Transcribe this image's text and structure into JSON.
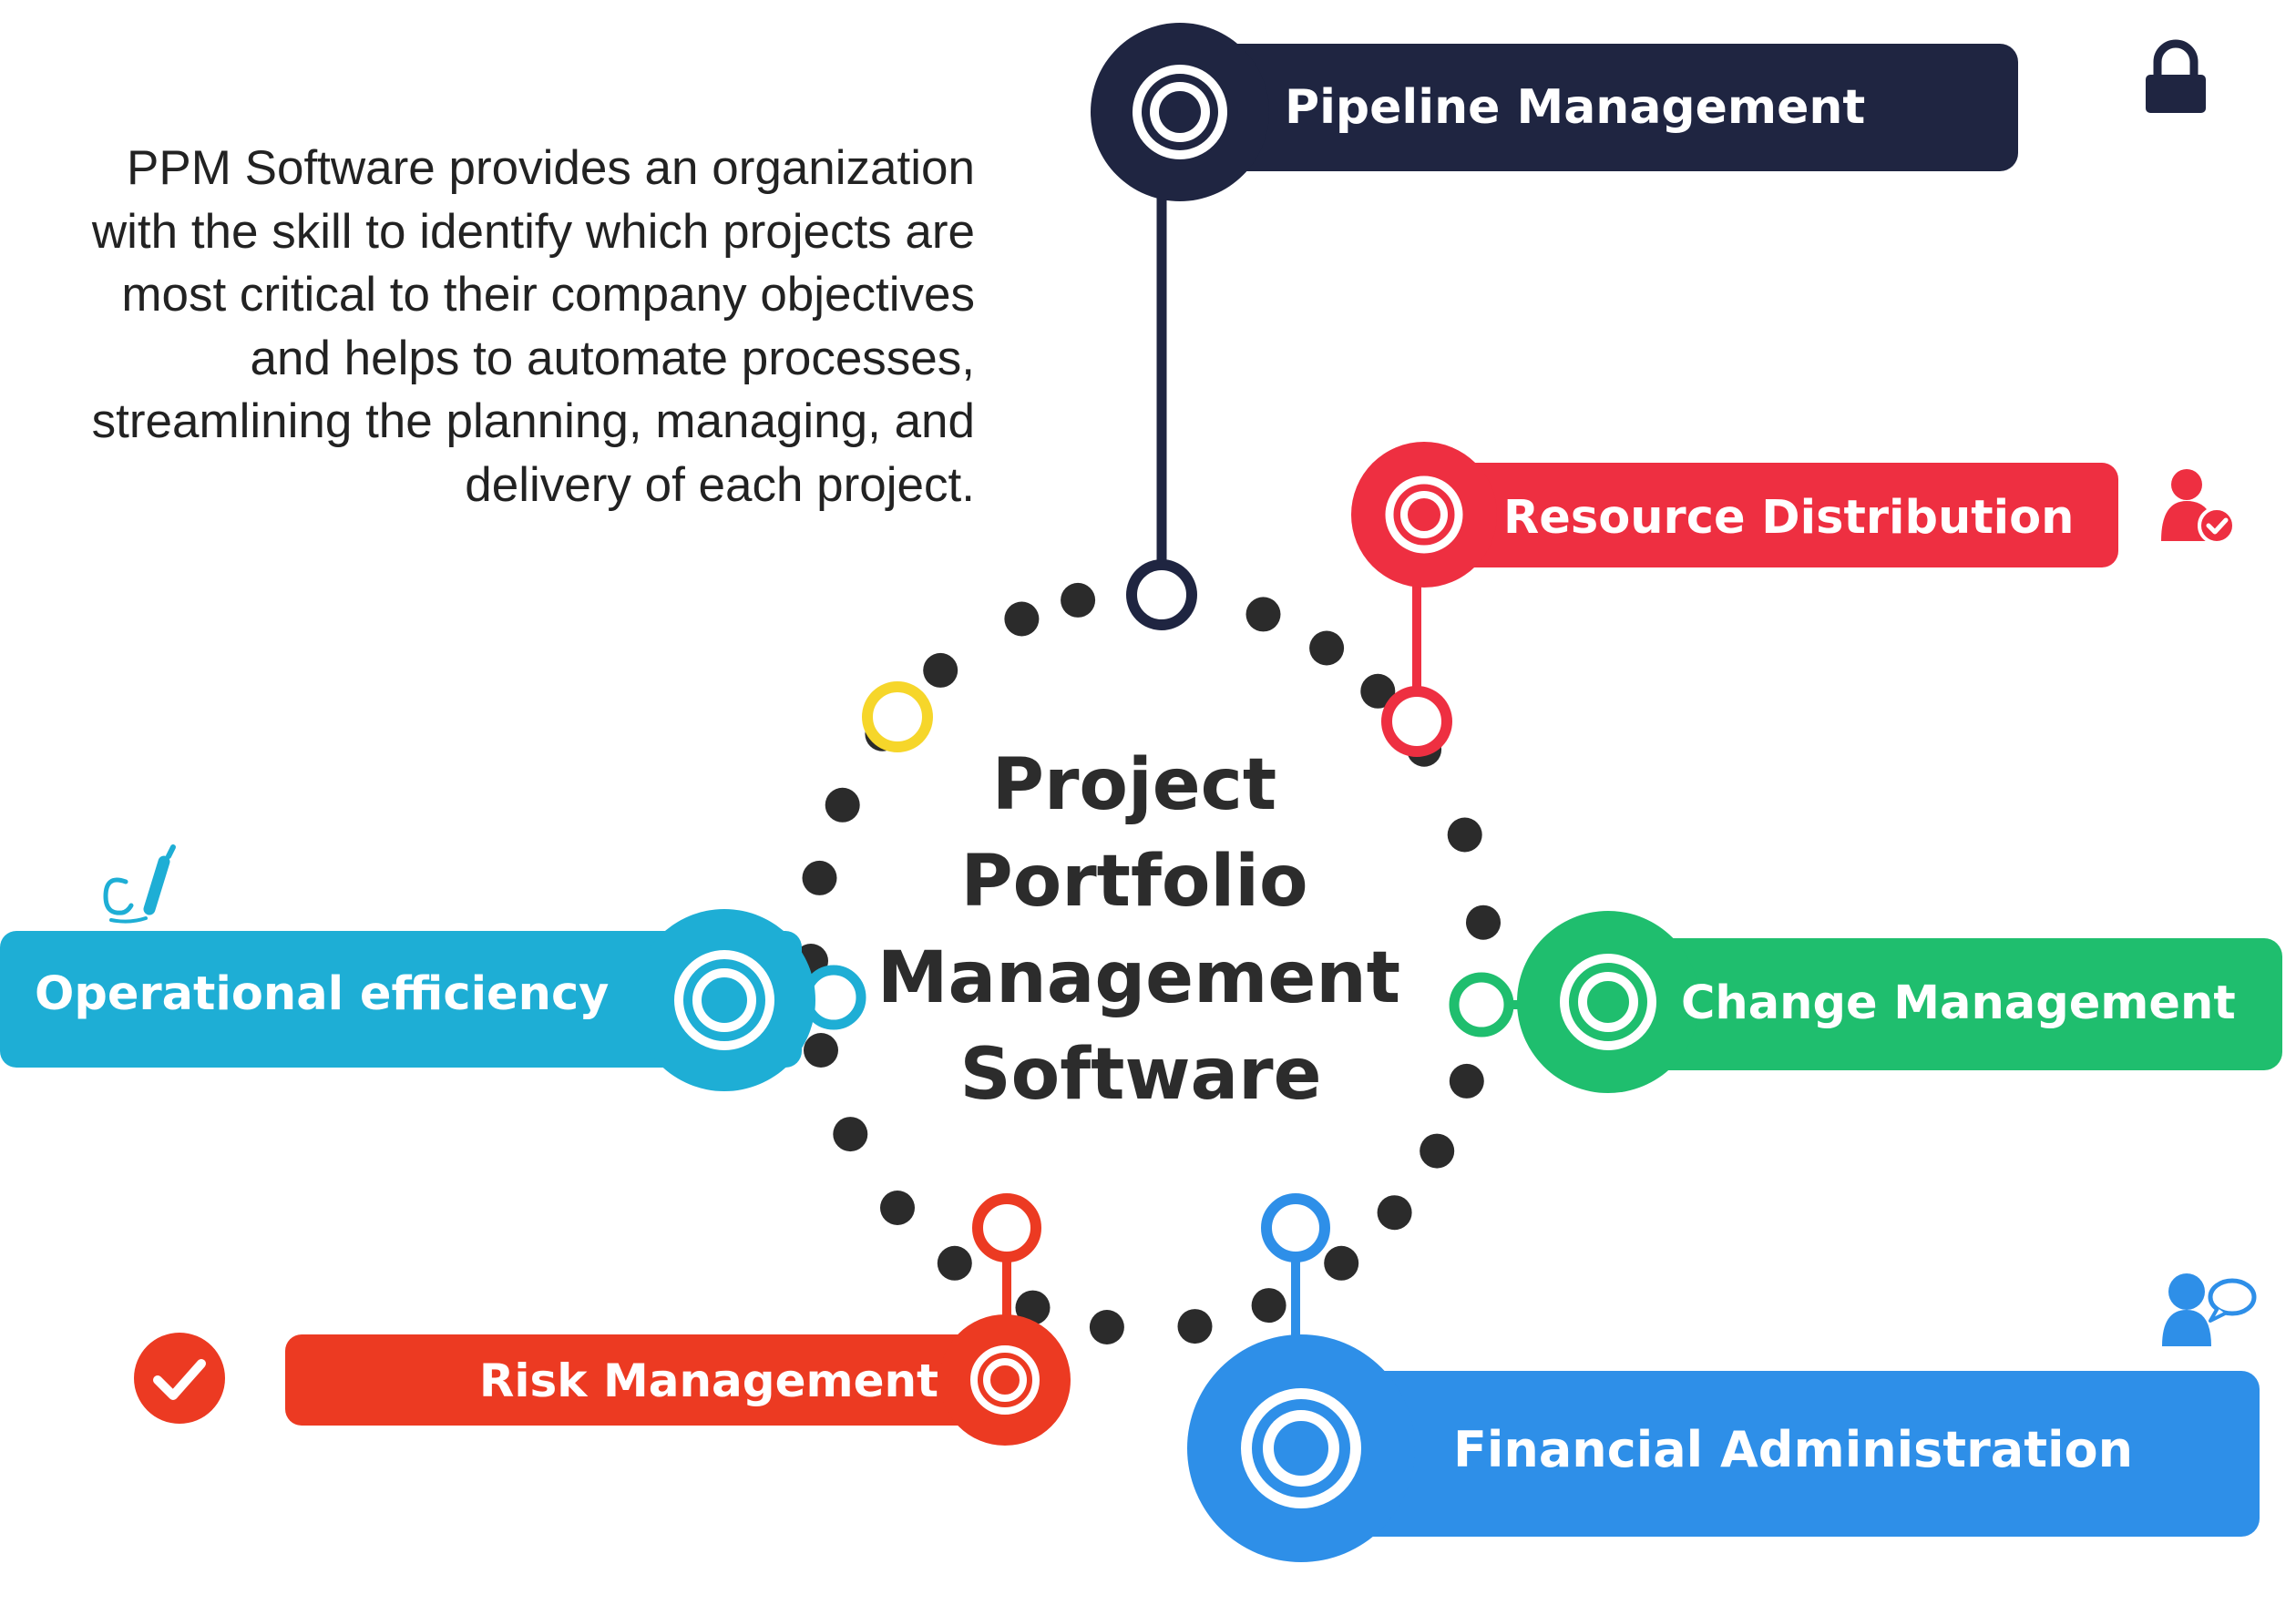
{
  "description": "PPM Software provides an organization with the skill to identify which projects are most critical to their company objectives and helps to automate processes, streamlining the planning, managing, and delivery of each project.",
  "center": {
    "lines": [
      "Project",
      "Portfolio",
      "Management",
      "Software"
    ]
  },
  "items": [
    {
      "label": "Pipeline Management",
      "color": "#1f2541",
      "icon": "lock-icon"
    },
    {
      "label": "Resource Distribution",
      "color": "#ee2f41",
      "icon": "user-check-icon"
    },
    {
      "label": "Change Management",
      "color": "#1fbe6e",
      "icon": "none"
    },
    {
      "label": "Financial Administration",
      "color": "#2e8fe8",
      "icon": "user-speech-icon"
    },
    {
      "label": "Risk Management",
      "color": "#ec3a22",
      "icon": "check-circle-icon"
    },
    {
      "label": "Operational efficiency",
      "color": "#1eaed5",
      "icon": "pen-writing-icon"
    }
  ],
  "colors": {
    "dots": "#2b2b2b",
    "ring_yellow": "#f6d62a",
    "text_dark": "#222222"
  }
}
